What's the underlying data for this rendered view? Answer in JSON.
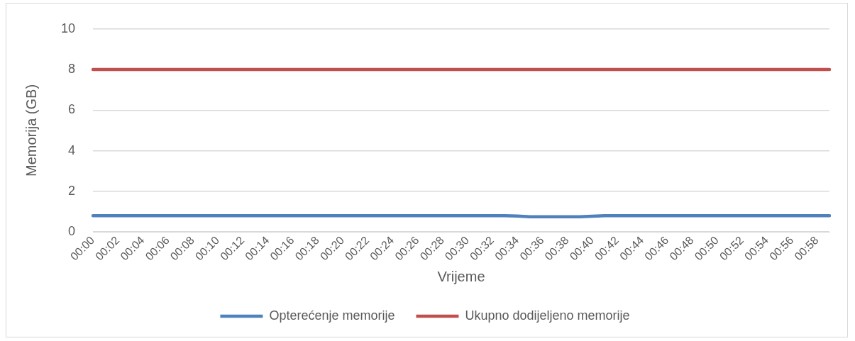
{
  "chart_data": {
    "type": "line",
    "xlabel": "Vrijeme",
    "ylabel": "Memorija (GB)",
    "categories": [
      "00:00",
      null,
      "00:02",
      null,
      "00:04",
      null,
      "00:06",
      null,
      "00:08",
      null,
      "00:10",
      null,
      "00:12",
      null,
      "00:14",
      null,
      "00:16",
      null,
      "00:18",
      null,
      "00:20",
      null,
      "00:22",
      null,
      "00:24",
      null,
      "00:26",
      null,
      "00:28",
      null,
      "00:30",
      null,
      "00:32",
      null,
      "00:34",
      null,
      "00:36",
      null,
      "00:38",
      null,
      "00:40",
      null,
      "00:42",
      null,
      "00:44",
      null,
      "00:46",
      null,
      "00:48",
      null,
      "00:50",
      null,
      "00:52",
      null,
      "00:54",
      null,
      "00:56",
      null,
      "00:58",
      null
    ],
    "series": [
      {
        "name": "Opterećenje memorije",
        "color": "#4f81bd",
        "values": [
          0.8,
          0.8,
          0.8,
          0.8,
          0.8,
          0.8,
          0.8,
          0.8,
          0.8,
          0.8,
          0.8,
          0.8,
          0.8,
          0.8,
          0.8,
          0.8,
          0.8,
          0.8,
          0.8,
          0.8,
          0.8,
          0.8,
          0.8,
          0.8,
          0.8,
          0.8,
          0.8,
          0.8,
          0.8,
          0.8,
          0.8,
          0.8,
          0.8,
          0.8,
          0.78,
          0.75,
          0.75,
          0.75,
          0.75,
          0.75,
          0.77,
          0.8,
          0.8,
          0.8,
          0.8,
          0.8,
          0.8,
          0.8,
          0.8,
          0.8,
          0.8,
          0.8,
          0.8,
          0.8,
          0.8,
          0.8,
          0.8,
          0.8,
          0.8,
          0.8
        ]
      },
      {
        "name": "Ukupno dodijeljeno memorije",
        "color": "#c0504d",
        "values": [
          8,
          8,
          8,
          8,
          8,
          8,
          8,
          8,
          8,
          8,
          8,
          8,
          8,
          8,
          8,
          8,
          8,
          8,
          8,
          8,
          8,
          8,
          8,
          8,
          8,
          8,
          8,
          8,
          8,
          8,
          8,
          8,
          8,
          8,
          8,
          8,
          8,
          8,
          8,
          8,
          8,
          8,
          8,
          8,
          8,
          8,
          8,
          8,
          8,
          8,
          8,
          8,
          8,
          8,
          8,
          8,
          8,
          8,
          8,
          8
        ]
      }
    ],
    "ylim": [
      0,
      10
    ],
    "yticks": [
      0,
      2,
      4,
      6,
      8,
      10
    ],
    "grid": "y",
    "legend": "bottom",
    "marker": "none",
    "line_style": "solid"
  }
}
